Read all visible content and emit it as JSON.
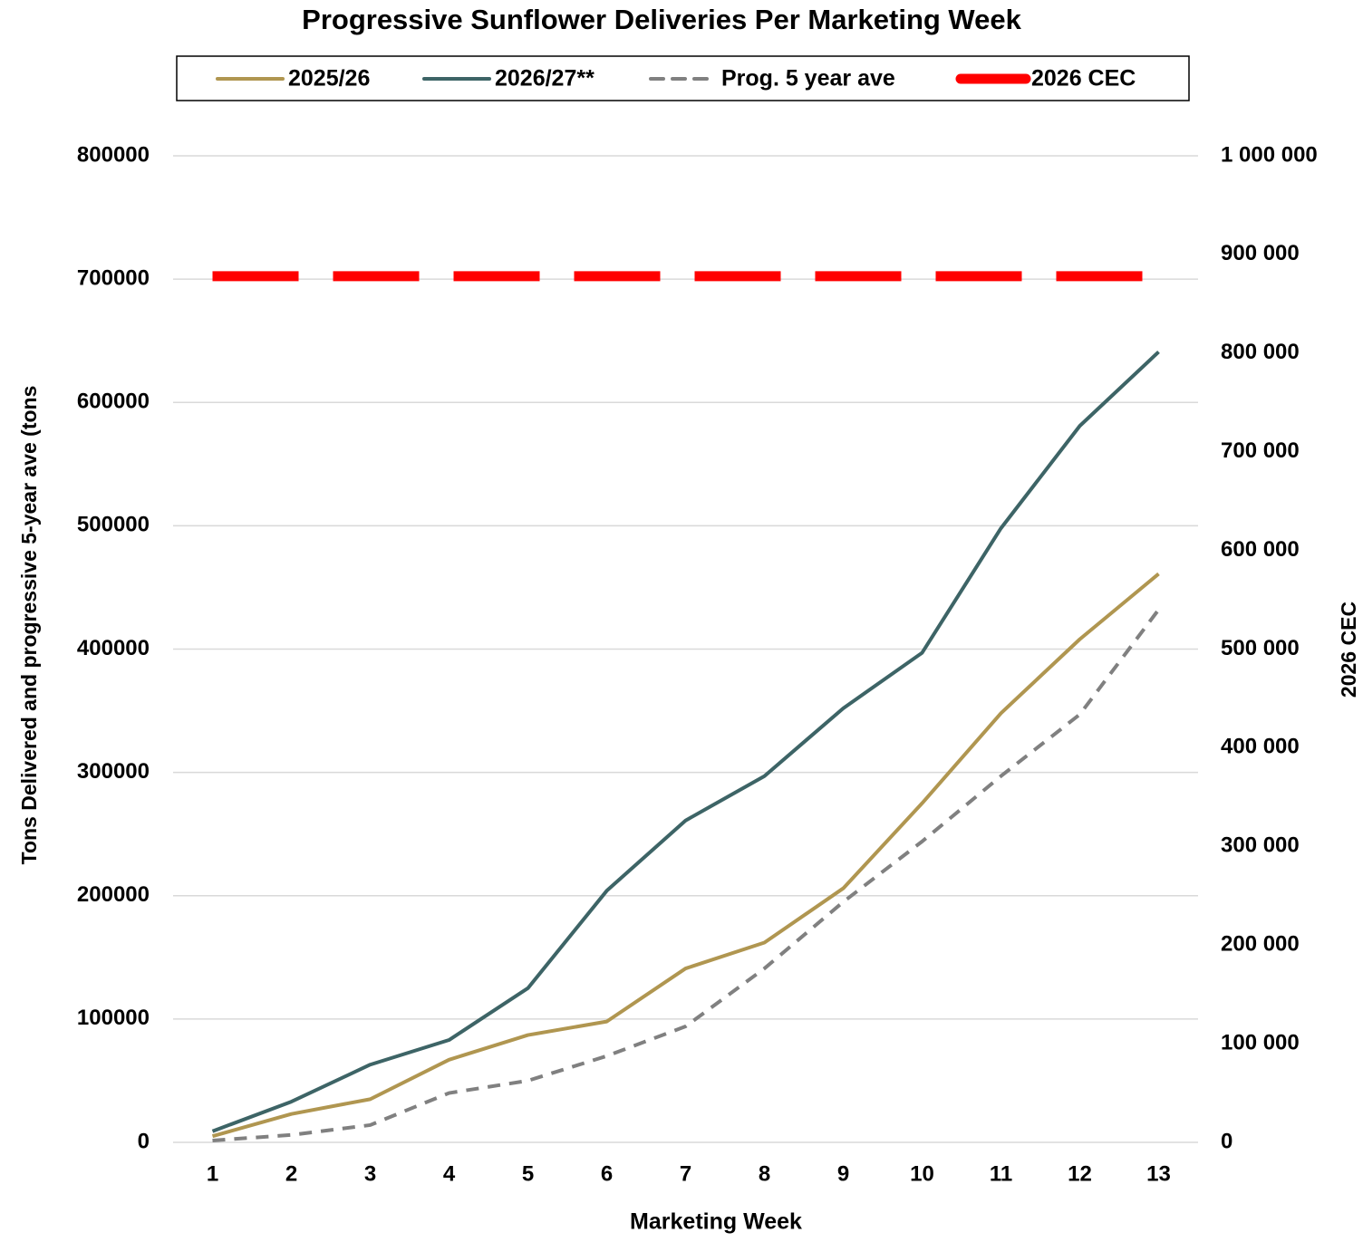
{
  "chart_data": {
    "type": "line",
    "title": "Progressive Sunflower Deliveries Per Marketing Week",
    "xlabel": "Marketing Week",
    "ylabel": "Tons Delivered and progressive 5-year ave (tons",
    "y2label": "2026 CEC",
    "categories": [
      "1",
      "2",
      "3",
      "4",
      "5",
      "6",
      "7",
      "8",
      "9",
      "10",
      "11",
      "12",
      "13"
    ],
    "ylim": [
      0,
      800000
    ],
    "yticks": [
      0,
      100000,
      200000,
      300000,
      400000,
      500000,
      600000,
      700000,
      800000
    ],
    "y2lim": [
      0,
      1000000
    ],
    "y2ticks": [
      0,
      {
        "value": 100000,
        "label": "100 000"
      },
      {
        "value": 200000,
        "label": "200 000"
      },
      {
        "value": 300000,
        "label": "300 000"
      },
      {
        "value": 400000,
        "label": "400 000"
      },
      {
        "value": 500000,
        "label": "500 000"
      },
      {
        "value": 600000,
        "label": "600 000"
      },
      {
        "value": 700000,
        "label": "700 000"
      },
      {
        "value": 800000,
        "label": "800 000"
      },
      {
        "value": 900000,
        "label": "900 000"
      },
      {
        "value": 1000000,
        "label": "1 000 000"
      }
    ],
    "grid": true,
    "legend": "top",
    "series": [
      {
        "name": "2025/26",
        "color": "#b09650",
        "style": "solid",
        "values": [
          5000,
          23000,
          35000,
          67000,
          87000,
          98000,
          141000,
          162000,
          206000,
          275000,
          348000,
          408000,
          461000
        ]
      },
      {
        "name": "2026/27**",
        "color": "#3d6466",
        "style": "solid",
        "values": [
          9000,
          33000,
          63000,
          83000,
          125000,
          204000,
          261000,
          297000,
          352000,
          397000,
          498000,
          581000,
          641000
        ]
      },
      {
        "name": "Prog. 5 year ave",
        "color": "#808080",
        "style": "dashed",
        "values": [
          1500,
          6000,
          14000,
          40000,
          50000,
          70000,
          94000,
          141000,
          195000,
          244000,
          297000,
          347000,
          432000
        ]
      },
      {
        "name": "2026 CEC",
        "color": "#ff0000",
        "style": "thick-dashed",
        "axis": "y2",
        "values": [
          878000,
          878000,
          878000,
          878000,
          878000,
          878000,
          878000,
          878000,
          878000,
          878000,
          878000,
          878000,
          878000
        ]
      }
    ]
  }
}
